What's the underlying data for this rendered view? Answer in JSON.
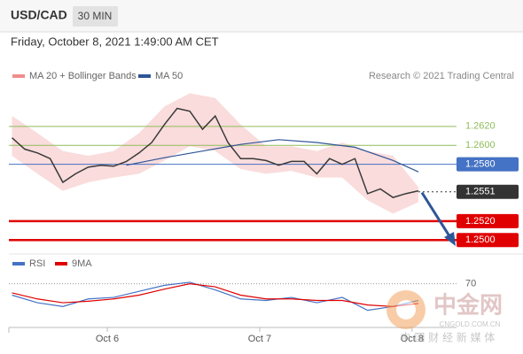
{
  "header": {
    "symbol": "USD/CAD",
    "timeframe": "30 MIN",
    "datetime": "Friday, October 8, 2021 1:49:00 AM CET"
  },
  "watermark": {
    "title": "中金网",
    "url": "CNGOLD.COM.CN",
    "tagline": "中 国 财 经 新 媒 体"
  },
  "chart_data": [
    {
      "type": "line",
      "credit": "Research © 2021 Trading Central",
      "x": [
        -15,
        -13,
        -11,
        -9,
        -7,
        -5,
        -3,
        -1,
        1,
        3,
        5,
        7,
        9,
        11,
        13,
        15,
        17,
        19,
        21,
        23,
        25,
        27,
        29,
        31,
        33,
        35,
        37,
        39,
        41,
        43,
        45,
        47,
        49
      ],
      "values": [
        1.2608,
        1.2596,
        1.2592,
        1.2586,
        1.2561,
        1.257,
        1.2577,
        1.2579,
        1.2578,
        1.2583,
        1.2592,
        1.2603,
        1.2622,
        1.2639,
        1.2636,
        1.2617,
        1.2631,
        1.2603,
        1.2586,
        1.2586,
        1.2584,
        1.2579,
        1.2583,
        1.2583,
        1.257,
        1.2586,
        1.258,
        1.2586,
        1.2549,
        1.2554,
        1.2545,
        1.2549,
        1.2552
      ],
      "color": "#3a3a3a",
      "band": {
        "name": "MA 20 + Bollinger Bands",
        "color": "#f08c8c",
        "x": [
          -15,
          -11,
          -7,
          -3,
          1,
          5,
          9,
          13,
          17,
          21,
          25,
          29,
          33,
          37,
          41,
          45,
          49
        ],
        "upper": [
          1.2631,
          1.2613,
          1.2594,
          1.2589,
          1.2594,
          1.2613,
          1.2641,
          1.2655,
          1.265,
          1.2622,
          1.2599,
          1.2599,
          1.2594,
          1.2603,
          1.2594,
          1.2589,
          1.2556
        ],
        "lower": [
          1.2589,
          1.257,
          1.2552,
          1.2561,
          1.2566,
          1.257,
          1.2584,
          1.2599,
          1.2594,
          1.2575,
          1.257,
          1.2573,
          1.2566,
          1.2566,
          1.2542,
          1.2528,
          1.254
        ]
      },
      "series": [
        {
          "name": "MA 50",
          "color": "#2f5597",
          "x": [
            3,
            9,
            15,
            21,
            27,
            33,
            39,
            45,
            49
          ],
          "values": [
            1.2579,
            1.2587,
            1.2594,
            1.2601,
            1.2606,
            1.2603,
            1.2598,
            1.2584,
            1.2572
          ]
        }
      ],
      "levels": [
        {
          "value": 1.262,
          "label": "1.2620",
          "color": "#8fbc5a",
          "boxed": false
        },
        {
          "value": 1.26,
          "label": "1.2600",
          "color": "#8fbc5a",
          "boxed": false
        },
        {
          "value": 1.258,
          "label": "1.2580",
          "color": "#4472c4",
          "boxed": true
        },
        {
          "value": 1.2551,
          "label": "1.2551",
          "color": "#333333",
          "boxed": true,
          "dotted": true
        },
        {
          "value": 1.252,
          "label": "1.2520",
          "color": "#e00000",
          "boxed": true
        },
        {
          "value": 1.25,
          "label": "1.2500",
          "color": "#e00000",
          "boxed": true
        }
      ],
      "ylim": [
        1.249,
        1.266
      ],
      "xlim": [
        -15.5,
        55
      ],
      "xticks": [
        {
          "value": 0,
          "label": "Oct 6"
        },
        {
          "value": 24,
          "label": "Oct 7"
        },
        {
          "value": 48,
          "label": "Oct 8"
        }
      ]
    },
    {
      "type": "line",
      "series": [
        {
          "name": "RSI",
          "color": "#4472c4",
          "x": [
            -15,
            -11,
            -7,
            -3,
            1,
            5,
            9,
            13,
            17,
            21,
            25,
            29,
            33,
            37,
            41,
            45,
            49
          ],
          "values": [
            55,
            45,
            40,
            50,
            52,
            60,
            68,
            72,
            62,
            50,
            48,
            52,
            45,
            52,
            35,
            40,
            48
          ]
        },
        {
          "name": "9MA",
          "color": "#e00000",
          "x": [
            -15,
            -11,
            -7,
            -3,
            1,
            5,
            9,
            13,
            17,
            21,
            25,
            29,
            33,
            37,
            41,
            45,
            49
          ],
          "values": [
            58,
            50,
            45,
            47,
            50,
            55,
            63,
            70,
            66,
            55,
            50,
            50,
            48,
            48,
            42,
            40,
            44
          ]
        }
      ],
      "ylim": [
        10,
        100
      ],
      "yticks": [
        70
      ],
      "xlim": [
        -15.5,
        55
      ]
    }
  ]
}
